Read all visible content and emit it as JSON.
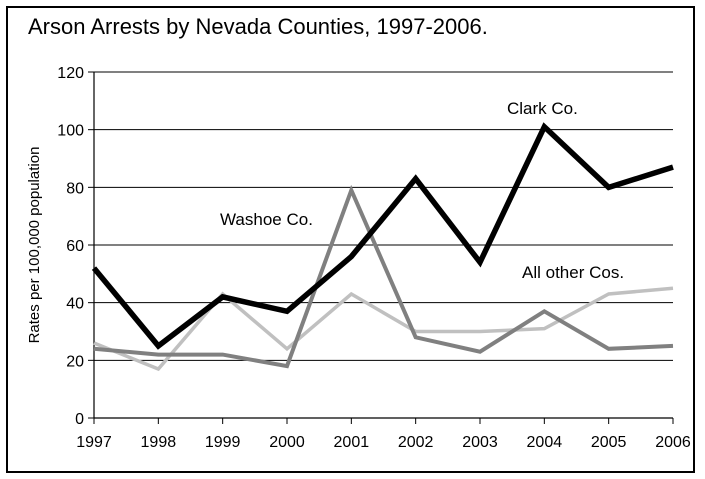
{
  "chart_data": {
    "type": "line",
    "title": "Arson Arrests by Nevada Counties, 1997-2006.",
    "xlabel": "",
    "ylabel": "Rates per 100,000 population",
    "ylim": [
      0,
      120
    ],
    "yticks": [
      0,
      20,
      40,
      60,
      80,
      100,
      120
    ],
    "x": [
      "1997",
      "1998",
      "1999",
      "2000",
      "2001",
      "2002",
      "2003",
      "2004",
      "2005",
      "2006"
    ],
    "grid": true,
    "series": [
      {
        "name": "Clark Co.",
        "color": "#000000",
        "values": [
          52,
          25,
          42,
          37,
          56,
          83,
          54,
          101,
          80,
          87
        ]
      },
      {
        "name": "Washoe Co.",
        "color": "#808080",
        "values": [
          24,
          22,
          22,
          18,
          79,
          28,
          23,
          37,
          24,
          25
        ]
      },
      {
        "name": "All other Cos.",
        "color": "#c0c0c0",
        "values": [
          26,
          17,
          43,
          24,
          43,
          30,
          30,
          31,
          43,
          45
        ]
      }
    ]
  }
}
